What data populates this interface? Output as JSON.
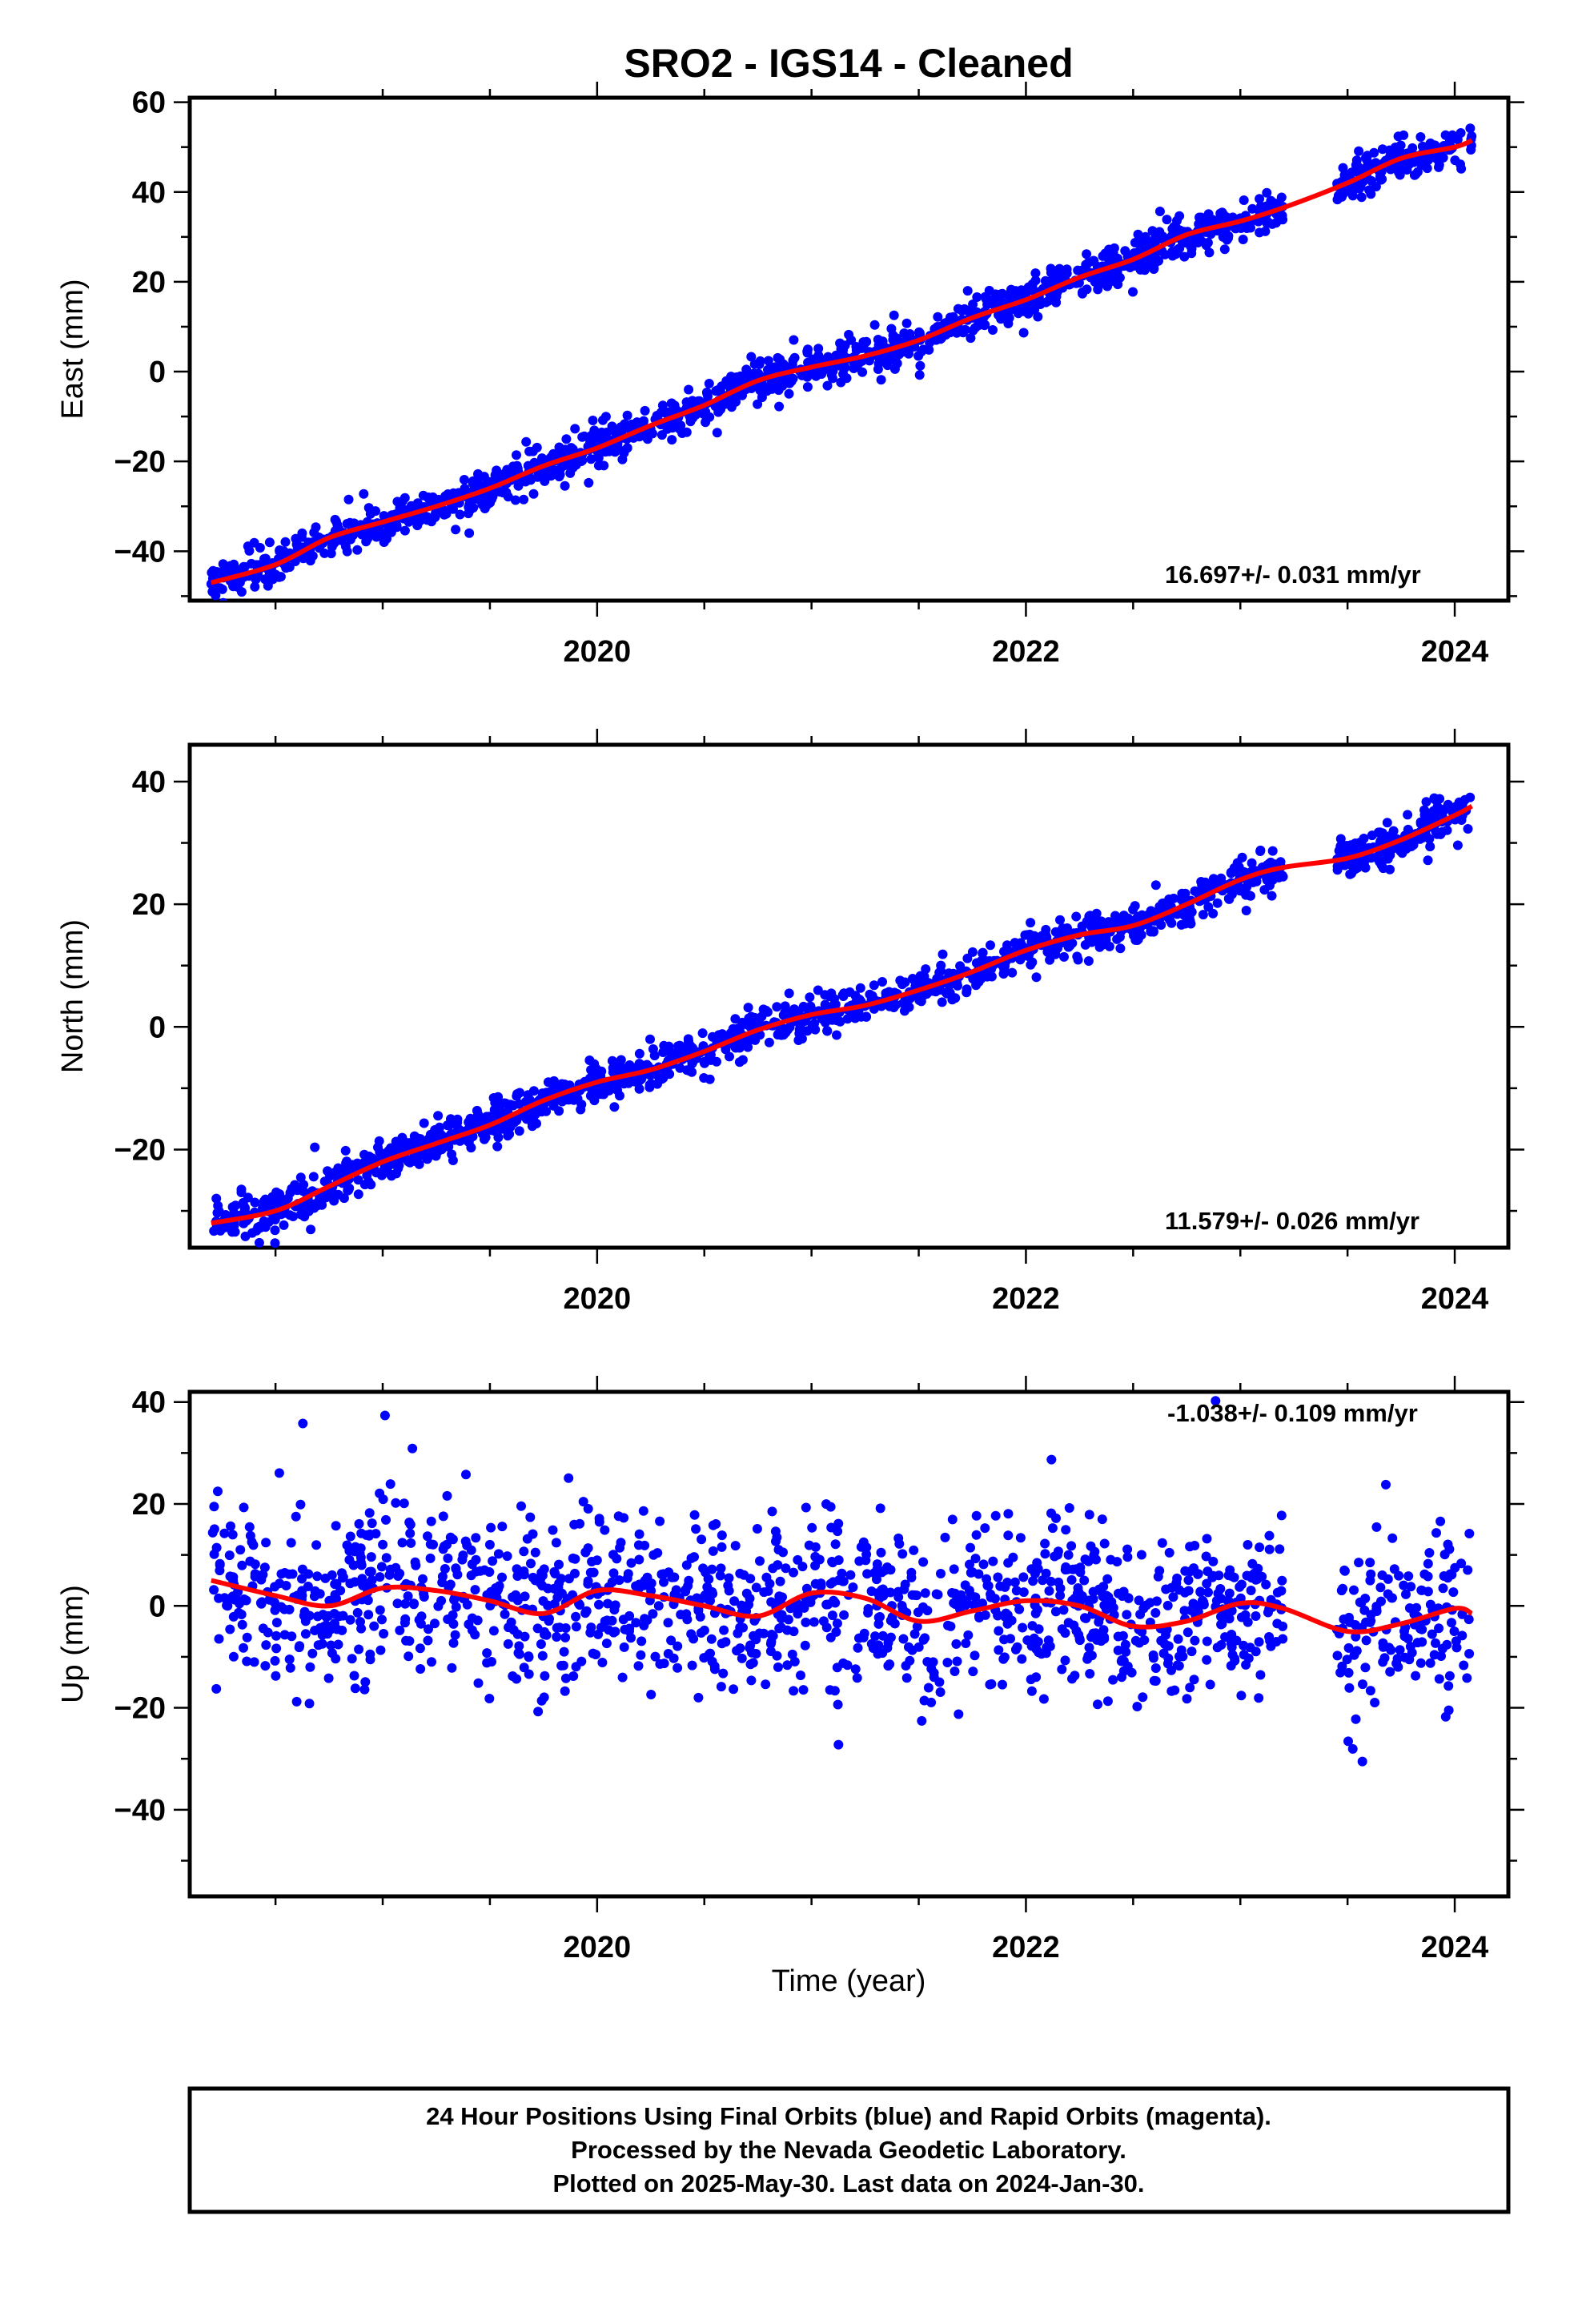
{
  "title": "SRO2  - IGS14 - Cleaned",
  "xlabel": "Time (year)",
  "footer": [
    "24 Hour Positions Using Final Orbits (blue) and Rapid Orbits (magenta).",
    "Processed by the Nevada Geodetic Laboratory.",
    "Plotted on 2025-May-30. Last data on 2024-Jan-30."
  ],
  "colors": {
    "data": "#0000ff",
    "model": "#ff0000",
    "frame": "#000000"
  },
  "chart_data": [
    {
      "type": "scatter",
      "ylabel": "East (mm)",
      "rate_label": "16.697+/- 0.031 mm/yr",
      "xlim": [
        2018.1,
        2024.25
      ],
      "ylim": [
        -51,
        61
      ],
      "xticks": [
        2020,
        2022,
        2024
      ],
      "yticks": [
        -40,
        -20,
        0,
        20,
        40,
        60
      ],
      "grid": false,
      "series": [
        {
          "values": {
            "trend_x": [
              2018.2,
              2018.5,
              2018.75,
              2019.0,
              2019.25,
              2019.5,
              2019.75,
              2020.0,
              2020.25,
              2020.5,
              2020.75,
              2021.0,
              2021.25,
              2021.5,
              2021.75,
              2022.0,
              2022.25,
              2022.5,
              2022.75,
              2023.0,
              2023.2,
              2023.5,
              2023.75,
              2024.0,
              2024.08
            ],
            "trend_y": [
              -47,
              -43,
              -37,
              -33.5,
              -30,
              -26,
              -21,
              -17,
              -12,
              -7.5,
              -2,
              1,
              3.5,
              7,
              12,
              16,
              21,
              25,
              30.5,
              33.5,
              36.5,
              42,
              47.5,
              50,
              51.5
            ]
          },
          "scatter_sd": 2.2
        }
      ]
    },
    {
      "type": "scatter",
      "ylabel": "North (mm)",
      "rate_label": "11.579+/- 0.026 mm/yr",
      "xlim": [
        2018.1,
        2024.25
      ],
      "ylim": [
        -36,
        46
      ],
      "xticks": [
        2020,
        2022,
        2024
      ],
      "yticks": [
        -20,
        0,
        20,
        40
      ],
      "grid": false,
      "series": [
        {
          "values": {
            "trend_x": [
              2018.2,
              2018.5,
              2018.75,
              2019.0,
              2019.25,
              2019.5,
              2019.75,
              2020.0,
              2020.25,
              2020.5,
              2020.75,
              2021.0,
              2021.25,
              2021.5,
              2021.75,
              2022.0,
              2022.25,
              2022.5,
              2022.75,
              2023.0,
              2023.2,
              2023.5,
              2023.75,
              2024.0,
              2024.08
            ],
            "trend_y": [
              -32,
              -30,
              -26,
              -22,
              -19,
              -16,
              -12,
              -9,
              -7,
              -4,
              -0.5,
              2,
              3.5,
              6,
              9,
              12.5,
              15,
              16.5,
              20,
              24,
              26,
              27.5,
              30.5,
              34.5,
              36
            ]
          },
          "scatter_sd": 1.6
        }
      ]
    },
    {
      "type": "scatter",
      "ylabel": "Up (mm)",
      "rate_label": "-1.038+/- 0.109 mm/yr",
      "xlim": [
        2018.1,
        2024.25
      ],
      "ylim": [
        -57,
        42
      ],
      "xticks": [
        2020,
        2022,
        2024
      ],
      "yticks": [
        -40,
        -20,
        0,
        20,
        40
      ],
      "grid": false,
      "series": [
        {
          "values": {
            "trend_x": [
              2018.2,
              2018.5,
              2018.75,
              2019.0,
              2019.25,
              2019.5,
              2019.75,
              2020.0,
              2020.25,
              2020.5,
              2020.75,
              2021.0,
              2021.25,
              2021.5,
              2021.75,
              2022.0,
              2022.25,
              2022.5,
              2022.75,
              2023.0,
              2023.2,
              2023.5,
              2023.75,
              2024.0,
              2024.08
            ],
            "trend_y": [
              5,
              2,
              0,
              3.5,
              3,
              1,
              -1.5,
              3,
              2,
              0,
              -2,
              2.5,
              1.5,
              -3,
              -1,
              1,
              0,
              -4,
              -3,
              0.5,
              -0.5,
              -5,
              -3.5,
              -0.5,
              -1.5
            ]
          },
          "scatter_sd": 8.5
        }
      ]
    }
  ]
}
